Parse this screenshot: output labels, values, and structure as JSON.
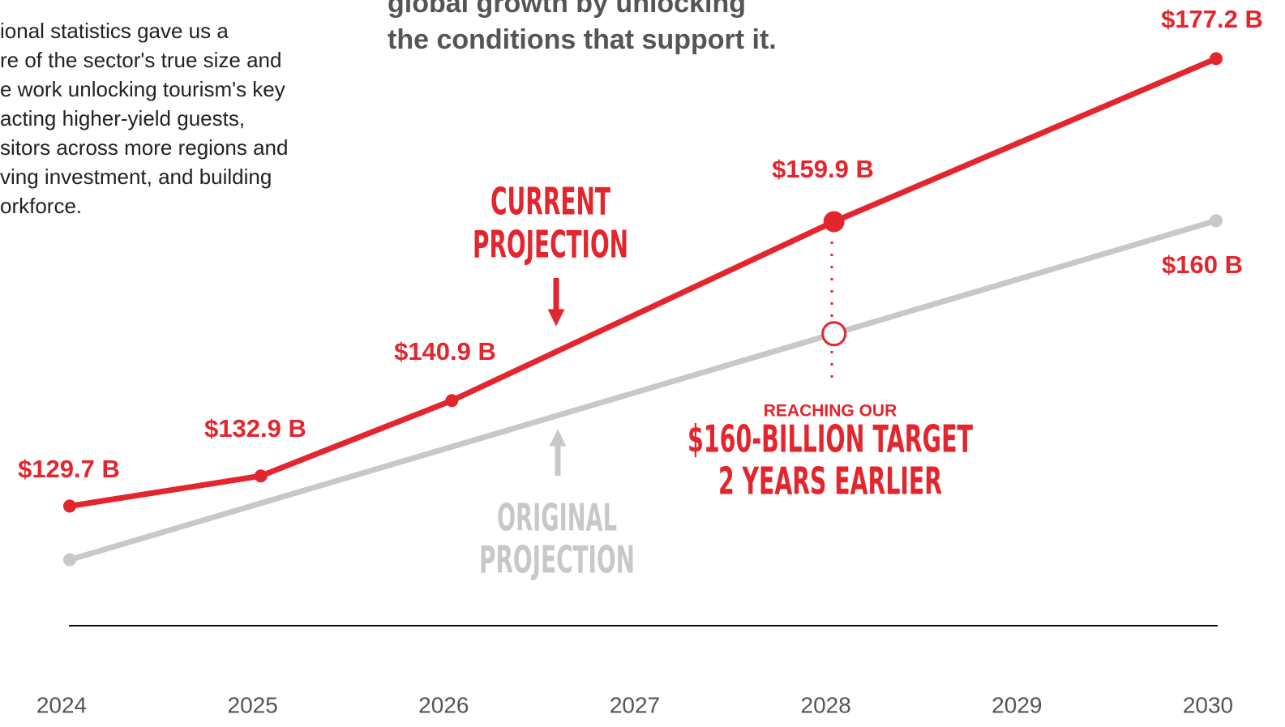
{
  "chart_data": {
    "type": "line",
    "intro_lines": [
      "ional statistics gave us a",
      "re of the sector's true size and",
      "e work unlocking tourism's key",
      "acting higher-yield guests,",
      "sitors across more regions and",
      "ving investment, and building",
      "orkforce."
    ],
    "headline_lines": [
      "global growth by unlocking",
      "the conditions that support it."
    ],
    "annotations": {
      "current": [
        "CURRENT",
        "PROJECTION"
      ],
      "original": [
        "ORIGINAL",
        "PROJECTION"
      ],
      "target_kicker": "REACHING OUR",
      "target": [
        "$160-BILLION TARGET",
        "2 YEARS EARLIER"
      ]
    },
    "xlim": [
      2024,
      2030
    ],
    "xticks": [
      2024,
      2025,
      2026,
      2027,
      2028,
      2029,
      2030
    ],
    "ylim": [
      117,
      183
    ],
    "series": [
      {
        "name": "CURRENT PROJECTION",
        "color": "#e3262e",
        "x": [
          2024,
          2025,
          2026,
          2028,
          2030
        ],
        "values": [
          129.7,
          132.9,
          140.9,
          159.9,
          177.2
        ],
        "value_labels": [
          "$129.7 B",
          "$132.9 B",
          "$140.9 B",
          "$159.9 B",
          "$177.2 B"
        ]
      },
      {
        "name": "ORIGINAL PROJECTION",
        "color": "#c8c8c8",
        "x": [
          2024,
          2028,
          2030
        ],
        "values": [
          124,
          148,
          160
        ],
        "value_labels": [
          null,
          null,
          "$160 B"
        ]
      }
    ]
  }
}
